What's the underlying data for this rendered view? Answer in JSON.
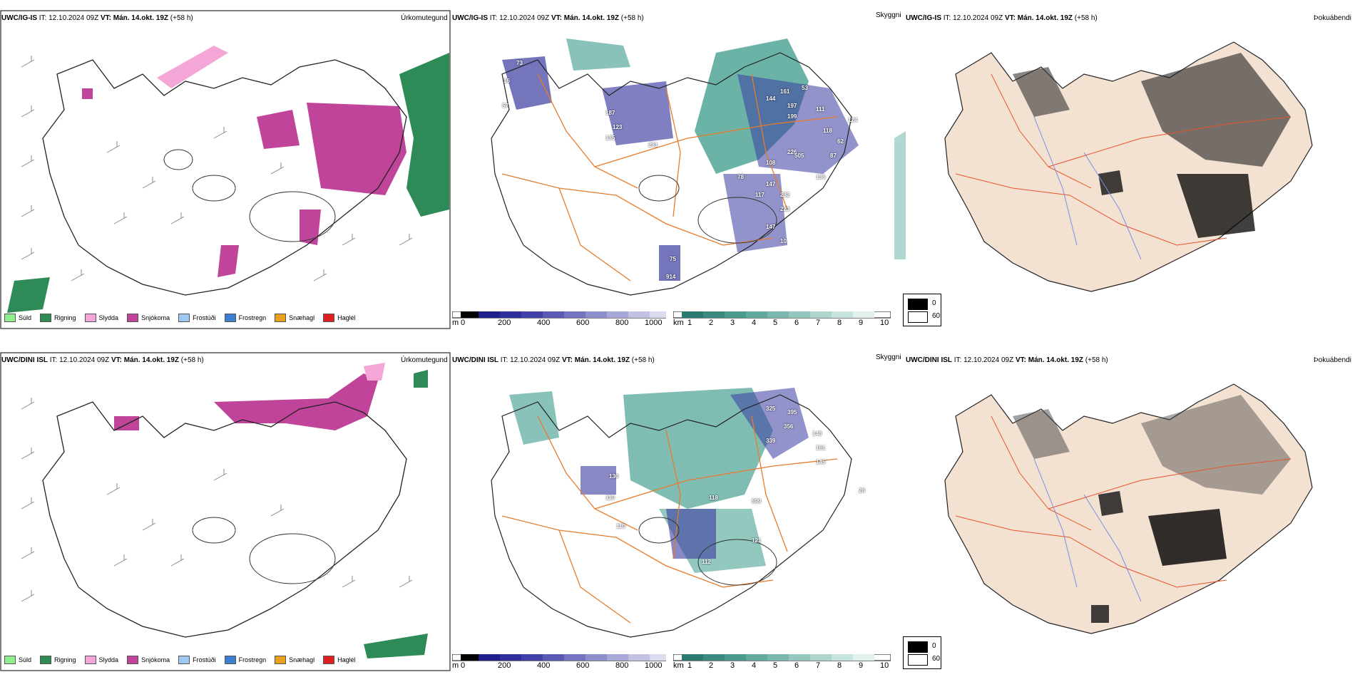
{
  "rows": [
    {
      "model": "UWC/IG-IS",
      "it_label": "IT:",
      "it_value": "12.10.2024 09Z",
      "vt_label": "VT:",
      "vt_value": "Mán. 14.okt. 19Z",
      "lead": "(+58 h)",
      "panels": {
        "precip": {
          "right_label": "Úrkomutegund"
        },
        "cloud": {
          "right_label": "Skyggni"
        },
        "fog": {
          "right_label": "Þokuábendi"
        }
      },
      "markers": [
        "73",
        "16",
        "57",
        "187",
        "123",
        "135",
        "231",
        "161",
        "53",
        "144",
        "197",
        "199",
        "111",
        "118",
        "124",
        "62",
        "87",
        "226",
        "108",
        "505",
        "136",
        "147",
        "117",
        "232",
        "223",
        "147",
        "10",
        "78",
        "75",
        "914"
      ]
    },
    {
      "model": "UWC/DINI ISL",
      "it_label": "IT:",
      "it_value": "12.10.2024 09Z",
      "vt_label": "VT:",
      "vt_value": "Mán. 14.okt. 19Z",
      "lead": "(+58 h)",
      "panels": {
        "precip": {
          "right_label": "Úrkomutegund"
        },
        "cloud": {
          "right_label": "Skyggni"
        },
        "fog": {
          "right_label": "Þokuábendi"
        }
      },
      "markers": [
        "325",
        "395",
        "356",
        "339",
        "148",
        "161",
        "145",
        "130",
        "110",
        "118",
        "599",
        "121",
        "112",
        "110",
        "28"
      ]
    }
  ],
  "precip_legend": [
    {
      "label": "Súld",
      "color": "#90ee90"
    },
    {
      "label": "Rigning",
      "color": "#2e8b57"
    },
    {
      "label": "Slydda",
      "color": "#f4a6d7"
    },
    {
      "label": "Snjókoma",
      "color": "#c0449a"
    },
    {
      "label": "Frostúði",
      "color": "#9ec9f0"
    },
    {
      "label": "Frostregn",
      "color": "#3d7fd0"
    },
    {
      "label": "Snæhagl",
      "color": "#e8a020"
    },
    {
      "label": "Haglél",
      "color": "#e02020"
    }
  ],
  "cloud_scale": {
    "unit": "m",
    "ticks": [
      "0",
      "200",
      "400",
      "600",
      "800",
      "1000"
    ]
  },
  "visibility_scale": {
    "unit": "km",
    "ticks": [
      "1",
      "2",
      "3",
      "4",
      "5",
      "6",
      "7",
      "8",
      "9",
      "10"
    ]
  },
  "fog_legend": {
    "values": [
      "0",
      "60"
    ]
  },
  "colors": {
    "rain": "#2e8b57",
    "snow": "#c0449a",
    "sleet": "#f4a6d7",
    "cloudbase": "#3a3aa0",
    "visibility": "#3a9a8a",
    "roads": "#e87b2a",
    "land_fog": "#f3e1d2"
  }
}
